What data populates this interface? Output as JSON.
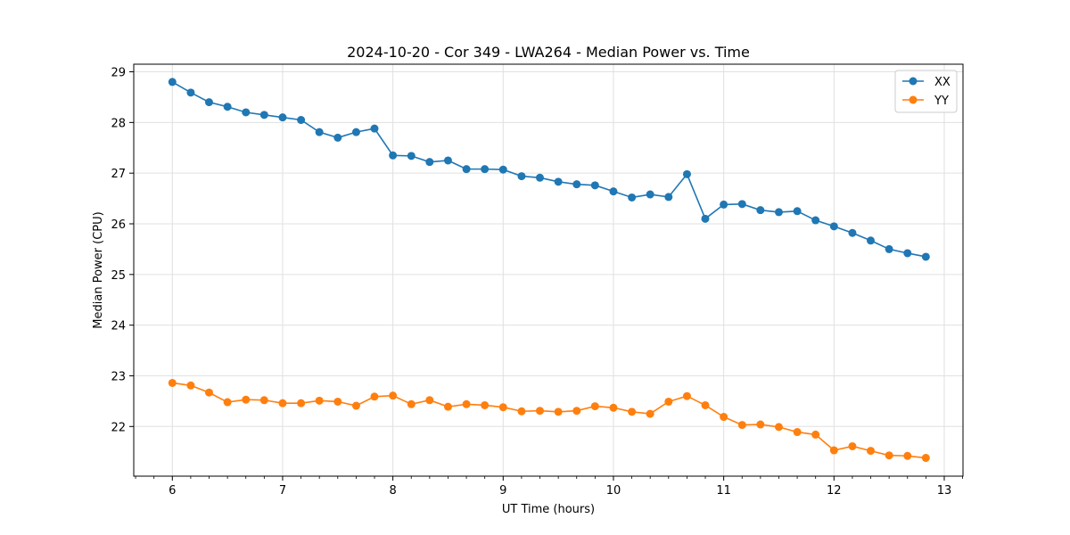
{
  "colors": {
    "xx": "#1f77b4",
    "yy": "#ff7f0e",
    "grid": "#e0e0e0",
    "axis": "#000000"
  },
  "chart_data": {
    "type": "line",
    "title": "2024-10-20 - Cor 349 - LWA264 - Median Power vs. Time",
    "xlabel": "UT Time (hours)",
    "ylabel": "Median Power (CPU)",
    "xlim": [
      5.65,
      13.17
    ],
    "ylim": [
      21.02,
      29.15
    ],
    "xticks": [
      6,
      7,
      8,
      9,
      10,
      11,
      12,
      13
    ],
    "yticks": [
      22,
      23,
      24,
      25,
      26,
      27,
      28,
      29
    ],
    "grid": true,
    "legend_position": "top-right",
    "x": [
      6.0,
      6.167,
      6.333,
      6.5,
      6.667,
      6.833,
      7.0,
      7.167,
      7.333,
      7.5,
      7.667,
      7.833,
      8.0,
      8.167,
      8.333,
      8.5,
      8.667,
      8.833,
      9.0,
      9.167,
      9.333,
      9.5,
      9.667,
      9.833,
      10.0,
      10.167,
      10.333,
      10.5,
      10.667,
      10.833,
      11.0,
      11.167,
      11.333,
      11.5,
      11.667,
      11.833,
      12.0,
      12.167,
      12.333,
      12.5,
      12.667,
      12.833
    ],
    "series": [
      {
        "name": "XX",
        "color": "#1f77b4",
        "values": [
          28.8,
          28.59,
          28.4,
          28.31,
          28.2,
          28.15,
          28.1,
          28.05,
          27.81,
          27.7,
          27.81,
          27.88,
          27.35,
          27.34,
          27.22,
          27.25,
          27.08,
          27.08,
          27.07,
          26.94,
          26.91,
          26.83,
          26.78,
          26.76,
          26.64,
          26.52,
          26.58,
          26.53,
          26.98,
          26.1,
          26.38,
          26.39,
          26.27,
          26.23,
          26.25,
          26.07,
          25.95,
          25.82,
          25.67,
          25.5,
          25.42,
          25.35
        ]
      },
      {
        "name": "YY",
        "color": "#ff7f0e",
        "values": [
          22.86,
          22.81,
          22.67,
          22.48,
          22.53,
          22.52,
          22.46,
          22.46,
          22.51,
          22.49,
          22.41,
          22.59,
          22.61,
          22.44,
          22.52,
          22.39,
          22.44,
          22.42,
          22.38,
          22.3,
          22.31,
          22.29,
          22.31,
          22.4,
          22.37,
          22.29,
          22.25,
          22.49,
          22.6,
          22.42,
          22.19,
          22.03,
          22.04,
          21.99,
          21.89,
          21.84,
          21.53,
          21.61,
          21.52,
          21.43,
          21.42,
          21.38
        ]
      }
    ]
  }
}
